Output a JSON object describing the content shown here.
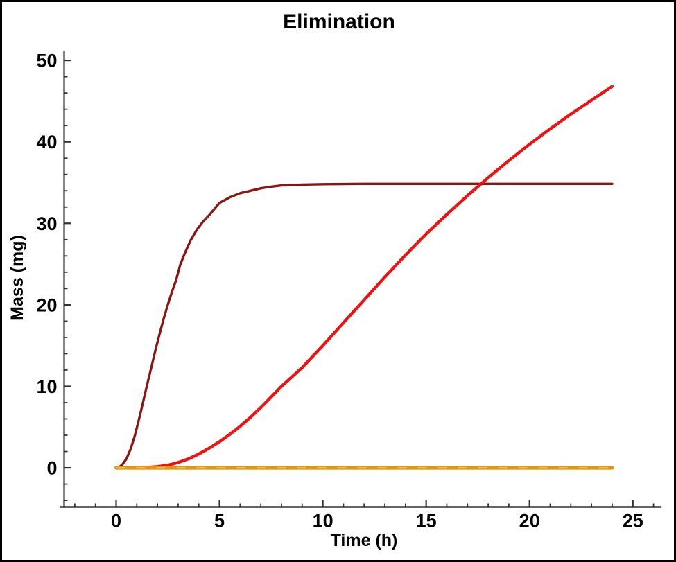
{
  "chart_data": {
    "type": "line",
    "title": "Elimination",
    "xlabel": "Time (h)",
    "ylabel": "Mass (mg)",
    "xlim": [
      -2.7,
      26.35
    ],
    "ylim": [
      -4.8,
      51.2
    ],
    "grid": false,
    "legend": "none",
    "axis_color": "#333333",
    "x_ticks_major": [
      0,
      5,
      10,
      15,
      20,
      25
    ],
    "x_tick_minor_step": 1,
    "y_ticks_major": [
      0,
      10,
      20,
      30,
      40,
      50
    ],
    "y_tick_minor_step": 2,
    "series": [
      {
        "name": "maroon-curve",
        "description": "dark red sigmoid rising fast, plateau ~34.9 mg",
        "color": "#8B1510",
        "width": 3.4,
        "x": [
          0,
          0.15,
          0.3,
          0.5,
          0.7,
          0.9,
          1.1,
          1.3,
          1.5,
          1.7,
          1.9,
          2.1,
          2.3,
          2.5,
          2.7,
          2.9,
          3.1,
          3.3,
          3.6,
          3.9,
          4.2,
          4.5,
          5.0,
          5.5,
          6.0,
          6.5,
          7.0,
          7.5,
          8.0,
          9.0,
          10,
          12,
          14,
          16,
          18,
          20,
          22,
          24
        ],
        "y": [
          0,
          0.1,
          0.4,
          1.1,
          2.3,
          3.9,
          5.9,
          8.0,
          10.2,
          12.3,
          14.4,
          16.4,
          18.3,
          20.0,
          21.6,
          23.0,
          24.9,
          26.2,
          27.9,
          29.2,
          30.2,
          31.0,
          32.5,
          33.2,
          33.7,
          34.0,
          34.3,
          34.5,
          34.65,
          34.75,
          34.8,
          34.85,
          34.85,
          34.85,
          34.85,
          34.85,
          34.85,
          34.85
        ]
      },
      {
        "name": "red-curve",
        "description": "bright red slow sigmoid reaching ~46.8 mg at 24 h, crosses maroon near t=17.6",
        "color": "#ED1313",
        "width": 4.4,
        "x": [
          0,
          0.5,
          1,
          1.5,
          2,
          2.5,
          3,
          3.5,
          4,
          4.5,
          5,
          5.5,
          6,
          6.5,
          7,
          7.5,
          8,
          9,
          10,
          11,
          12,
          13,
          14,
          15,
          16,
          17,
          18,
          19,
          20,
          21,
          22,
          23,
          24
        ],
        "y": [
          0,
          0,
          0.02,
          0.06,
          0.15,
          0.33,
          0.65,
          1.1,
          1.7,
          2.4,
          3.2,
          4.1,
          5.1,
          6.2,
          7.4,
          8.7,
          10.0,
          12.3,
          15.0,
          17.8,
          20.6,
          23.4,
          26.1,
          28.7,
          31.1,
          33.4,
          35.6,
          37.7,
          39.7,
          41.6,
          43.4,
          45.1,
          46.8
        ]
      },
      {
        "name": "orange-baseline",
        "description": "orange horizontal line at 0 mg from 0 to 24 h",
        "color": "#E2960C",
        "width": 5,
        "overlay_dash_color": "#F0C04E",
        "x": [
          0,
          24
        ],
        "y": [
          0,
          0
        ]
      }
    ]
  }
}
